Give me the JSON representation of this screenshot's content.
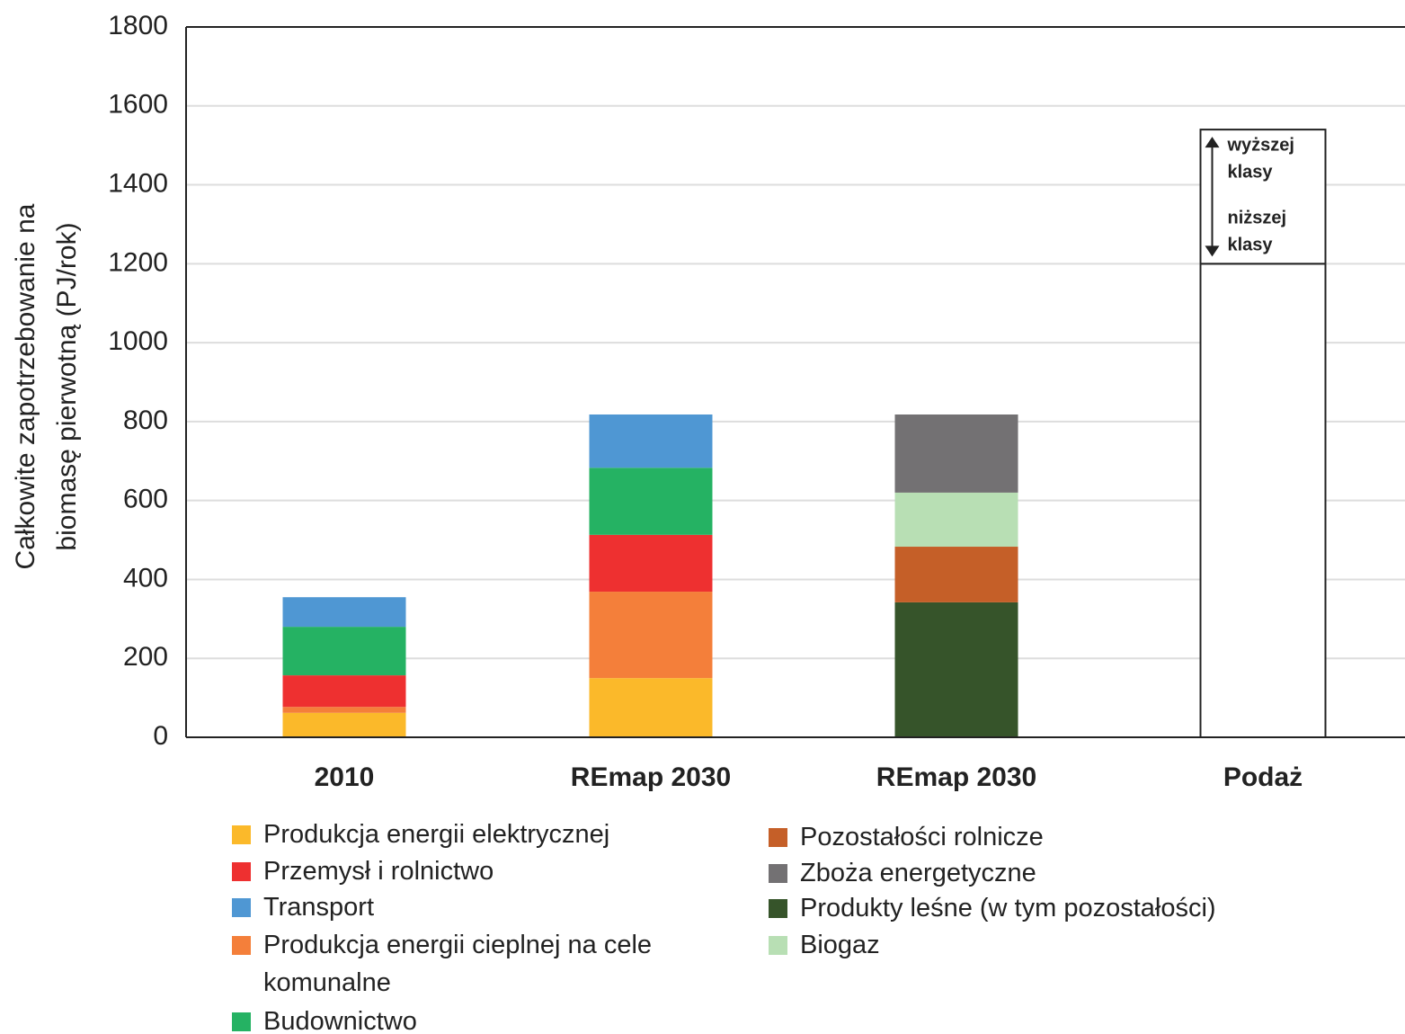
{
  "chart_data": {
    "type": "stacked_bar",
    "y_label": [
      "Całkowite zapotrzebowanie na",
      "biomasę pierwotną (PJ/rok)"
    ],
    "categories": [
      "2010",
      "REmap 2030",
      "REmap 2030",
      "Podaż"
    ],
    "series": [
      {
        "name": "Produkcja energii elektrycznej",
        "color": "#fbb92a",
        "values": [
          62,
          150,
          null,
          null
        ]
      },
      {
        "name": "Produkcja energii cieplnej na cele komunalne",
        "color": "#f47f3a",
        "values": [
          15,
          219,
          null,
          null
        ]
      },
      {
        "name": "Przemysł i rolnictwo",
        "color": "#ee3030",
        "values": [
          80,
          144,
          null,
          null
        ]
      },
      {
        "name": "Budownictwo",
        "color": "#25b263",
        "values": [
          123,
          170,
          null,
          null
        ]
      },
      {
        "name": "Transport",
        "color": "#4f97d3",
        "values": [
          75,
          135,
          null,
          null
        ]
      },
      {
        "name": "Produkty leśne (w tym pozostałości)",
        "color": "#36542a",
        "values": [
          null,
          null,
          342,
          null
        ]
      },
      {
        "name": "Pozostałości rolnicze",
        "color": "#c55f28",
        "values": [
          null,
          null,
          141,
          null
        ]
      },
      {
        "name": "Biogaz",
        "color": "#b8dfb4",
        "values": [
          null,
          null,
          137,
          null
        ]
      },
      {
        "name": "Zboża energetyczne",
        "color": "#737173",
        "values": [
          null,
          null,
          198,
          null
        ]
      }
    ],
    "supply_segments": [
      1200,
      340
    ],
    "supply_labels": [
      [
        "niższej",
        "klasy"
      ],
      [
        "wyższej",
        "klasy"
      ]
    ],
    "ylim": [
      0,
      1800
    ],
    "yticks": [
      0,
      200,
      400,
      600,
      800,
      1000,
      1200,
      1400,
      1600,
      1800
    ],
    "grid": true
  }
}
